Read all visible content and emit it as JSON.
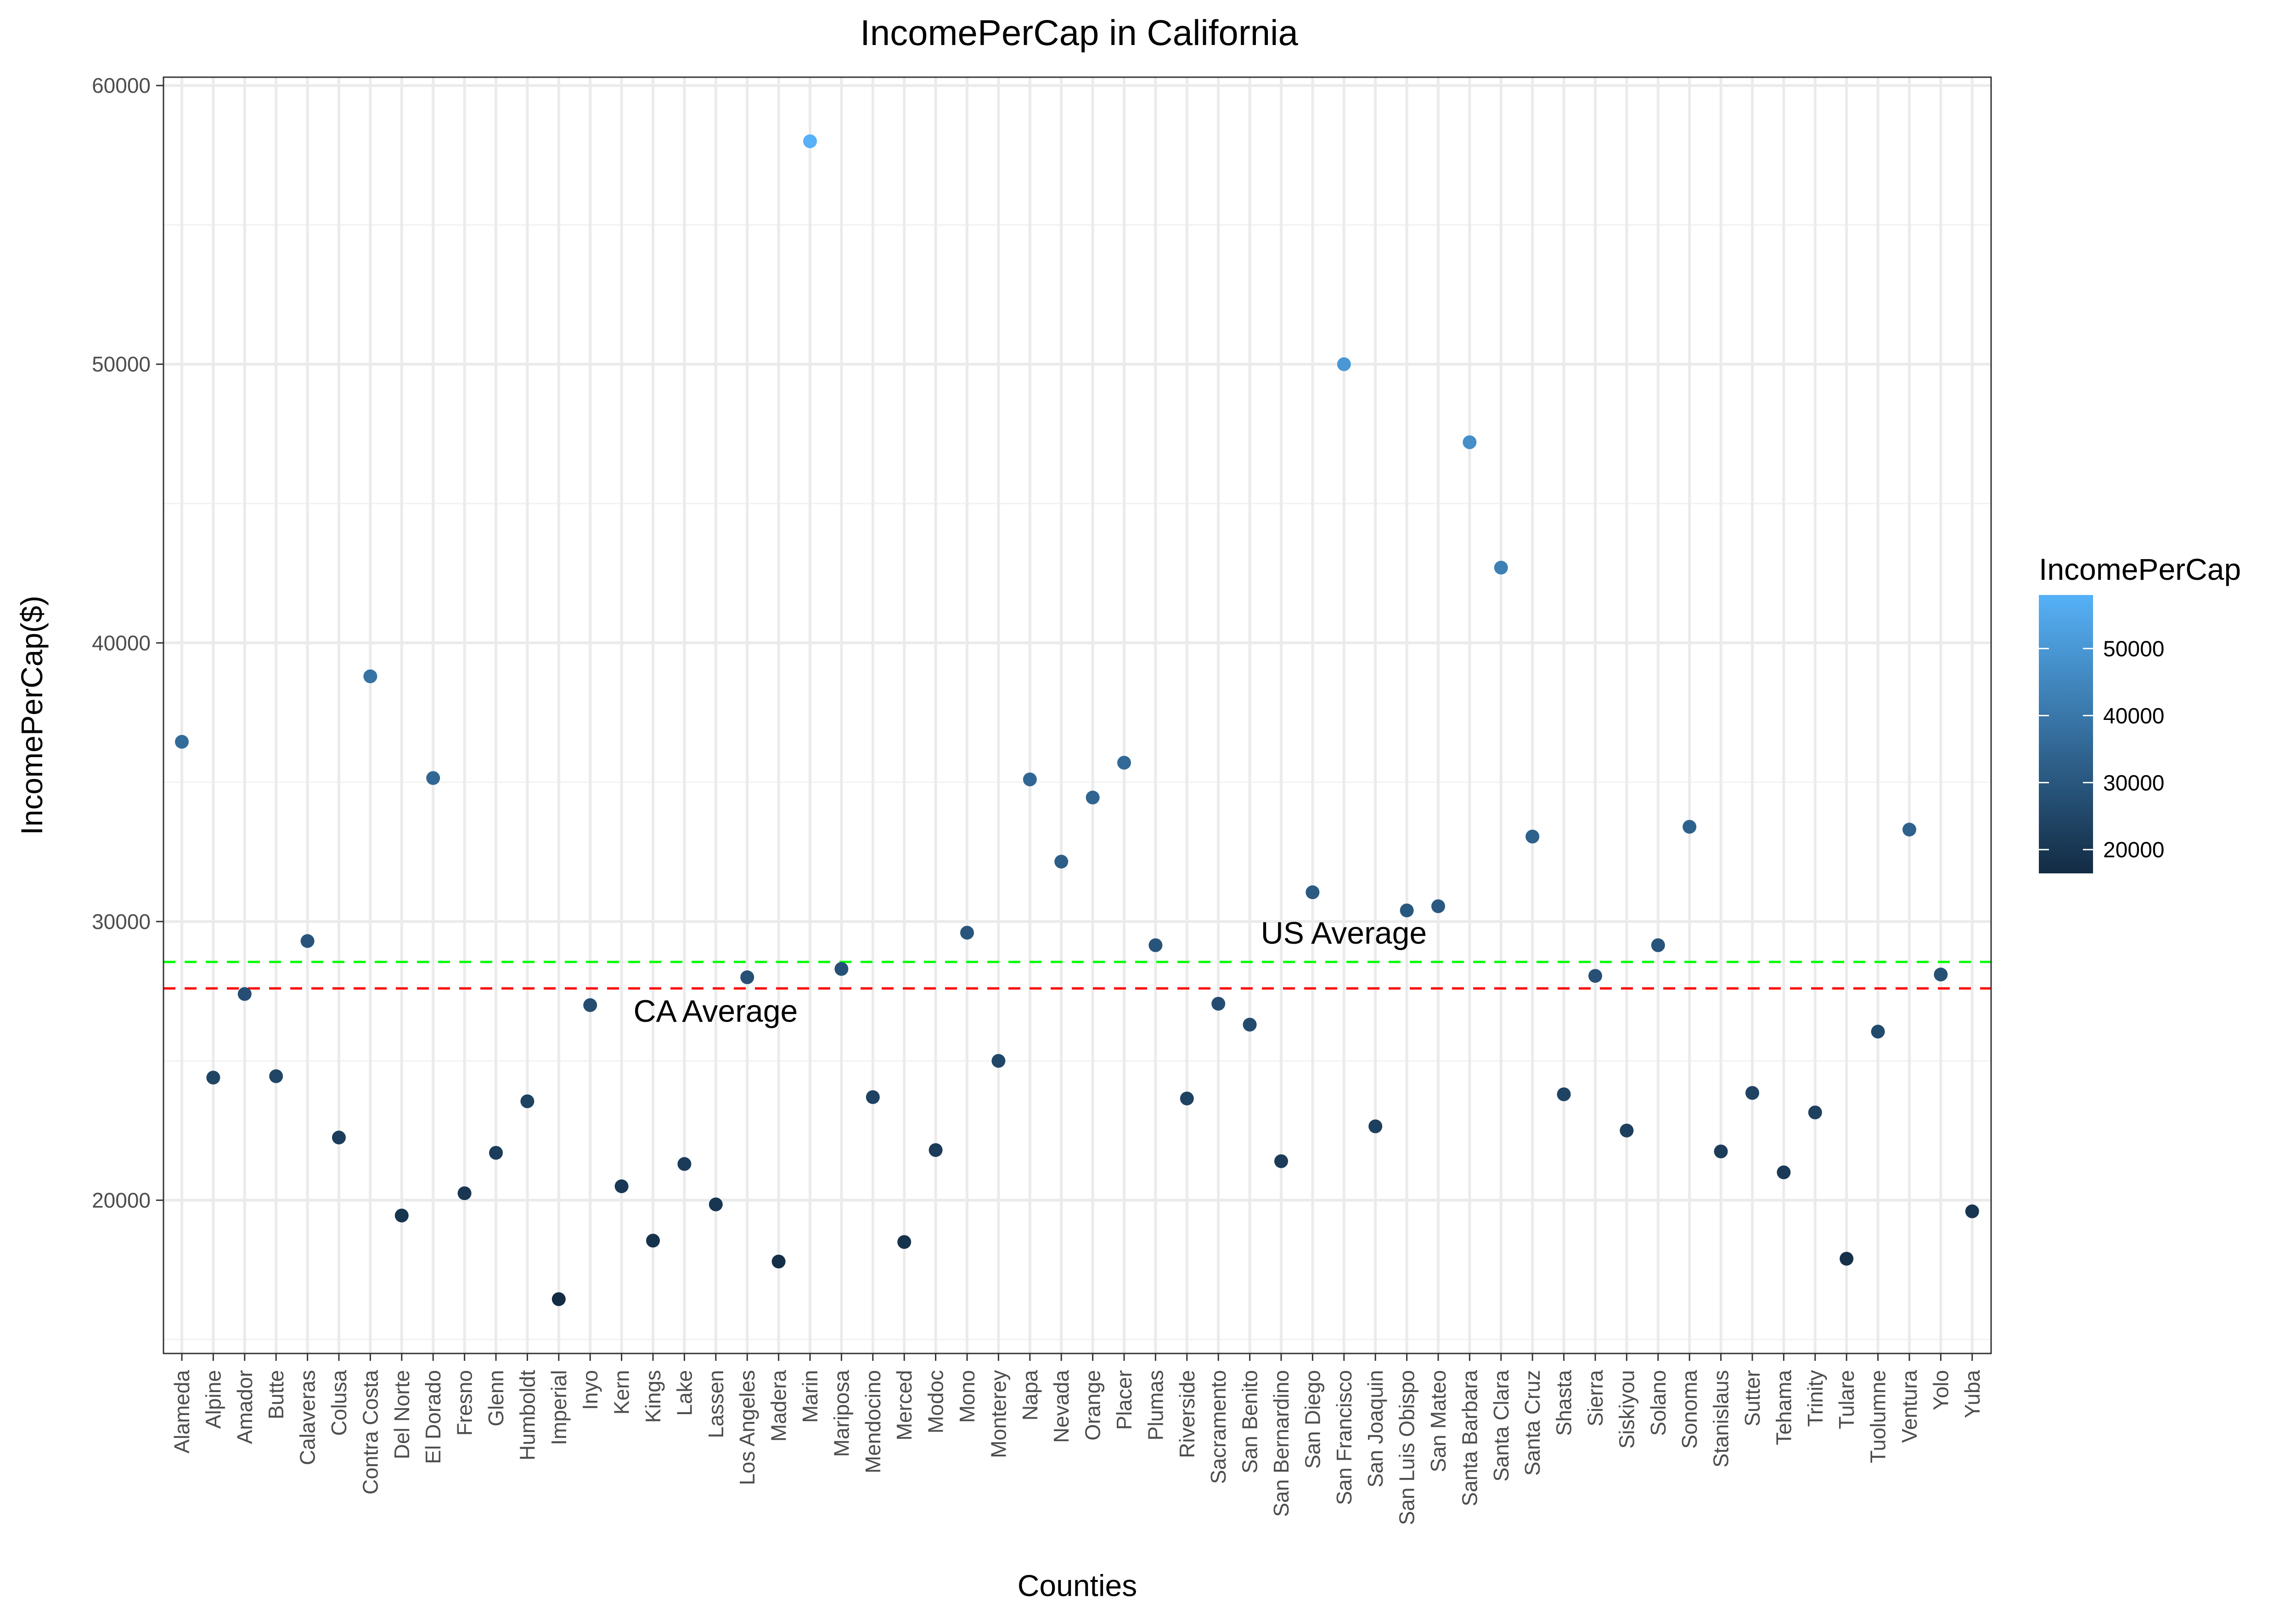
{
  "chart_data": {
    "type": "scatter",
    "title": "IncomePerCap in California",
    "xlabel": "Counties",
    "ylabel": "IncomePerCap($)",
    "ylim": [
      14500,
      60300
    ],
    "yticks": [
      20000,
      30000,
      40000,
      50000,
      60000
    ],
    "grid": true,
    "categories": [
      "Alameda",
      "Alpine",
      "Amador",
      "Butte",
      "Calaveras",
      "Colusa",
      "Contra Costa",
      "Del Norte",
      "El Dorado",
      "Fresno",
      "Glenn",
      "Humboldt",
      "Imperial",
      "Inyo",
      "Kern",
      "Kings",
      "Lake",
      "Lassen",
      "Los Angeles",
      "Madera",
      "Marin",
      "Mariposa",
      "Mendocino",
      "Merced",
      "Modoc",
      "Mono",
      "Monterey",
      "Napa",
      "Nevada",
      "Orange",
      "Placer",
      "Plumas",
      "Riverside",
      "Sacramento",
      "San Benito",
      "San Bernardino",
      "San Diego",
      "San Francisco",
      "San Joaquin",
      "San Luis Obispo",
      "San Mateo",
      "Santa Barbara",
      "Santa Clara",
      "Santa Cruz",
      "Shasta",
      "Sierra",
      "Siskiyou",
      "Solano",
      "Sonoma",
      "Stanislaus",
      "Sutter",
      "Tehama",
      "Trinity",
      "Tulare",
      "Tuolumne",
      "Ventura",
      "Yolo",
      "Yuba"
    ],
    "values": [
      36450,
      24400,
      27400,
      24450,
      29300,
      22250,
      38800,
      19450,
      35150,
      20250,
      21700,
      23550,
      16450,
      27000,
      20500,
      18550,
      21300,
      19850,
      28000,
      17800,
      58000,
      28300,
      23700,
      18500,
      21800,
      29600,
      25000,
      35100,
      32150,
      34450,
      35700,
      29150,
      23650,
      27050,
      26300,
      21400,
      31050,
      50000,
      22650,
      30400,
      30550,
      47200,
      42700,
      33050,
      23800,
      28050,
      22500,
      29150,
      33400,
      21750,
      23850,
      21000,
      23150,
      17900,
      26050,
      33300,
      28100,
      19600
    ],
    "reference_lines": [
      {
        "name": "US Average",
        "value": 28550,
        "color": "#00ff00",
        "style": "dashed"
      },
      {
        "name": "CA Average",
        "value": 27600,
        "color": "#ff0000",
        "style": "dashed"
      }
    ],
    "annotations": [
      {
        "text": "US Average",
        "x_category": "San Diego",
        "y": 29600
      },
      {
        "text": "CA Average",
        "x_category": "Lake",
        "y": 26800
      }
    ],
    "color_scale": {
      "title": "IncomePerCap",
      "low_color": "#132b43",
      "high_color": "#56b1f7",
      "ticks": [
        20000,
        30000,
        40000,
        50000
      ]
    }
  }
}
